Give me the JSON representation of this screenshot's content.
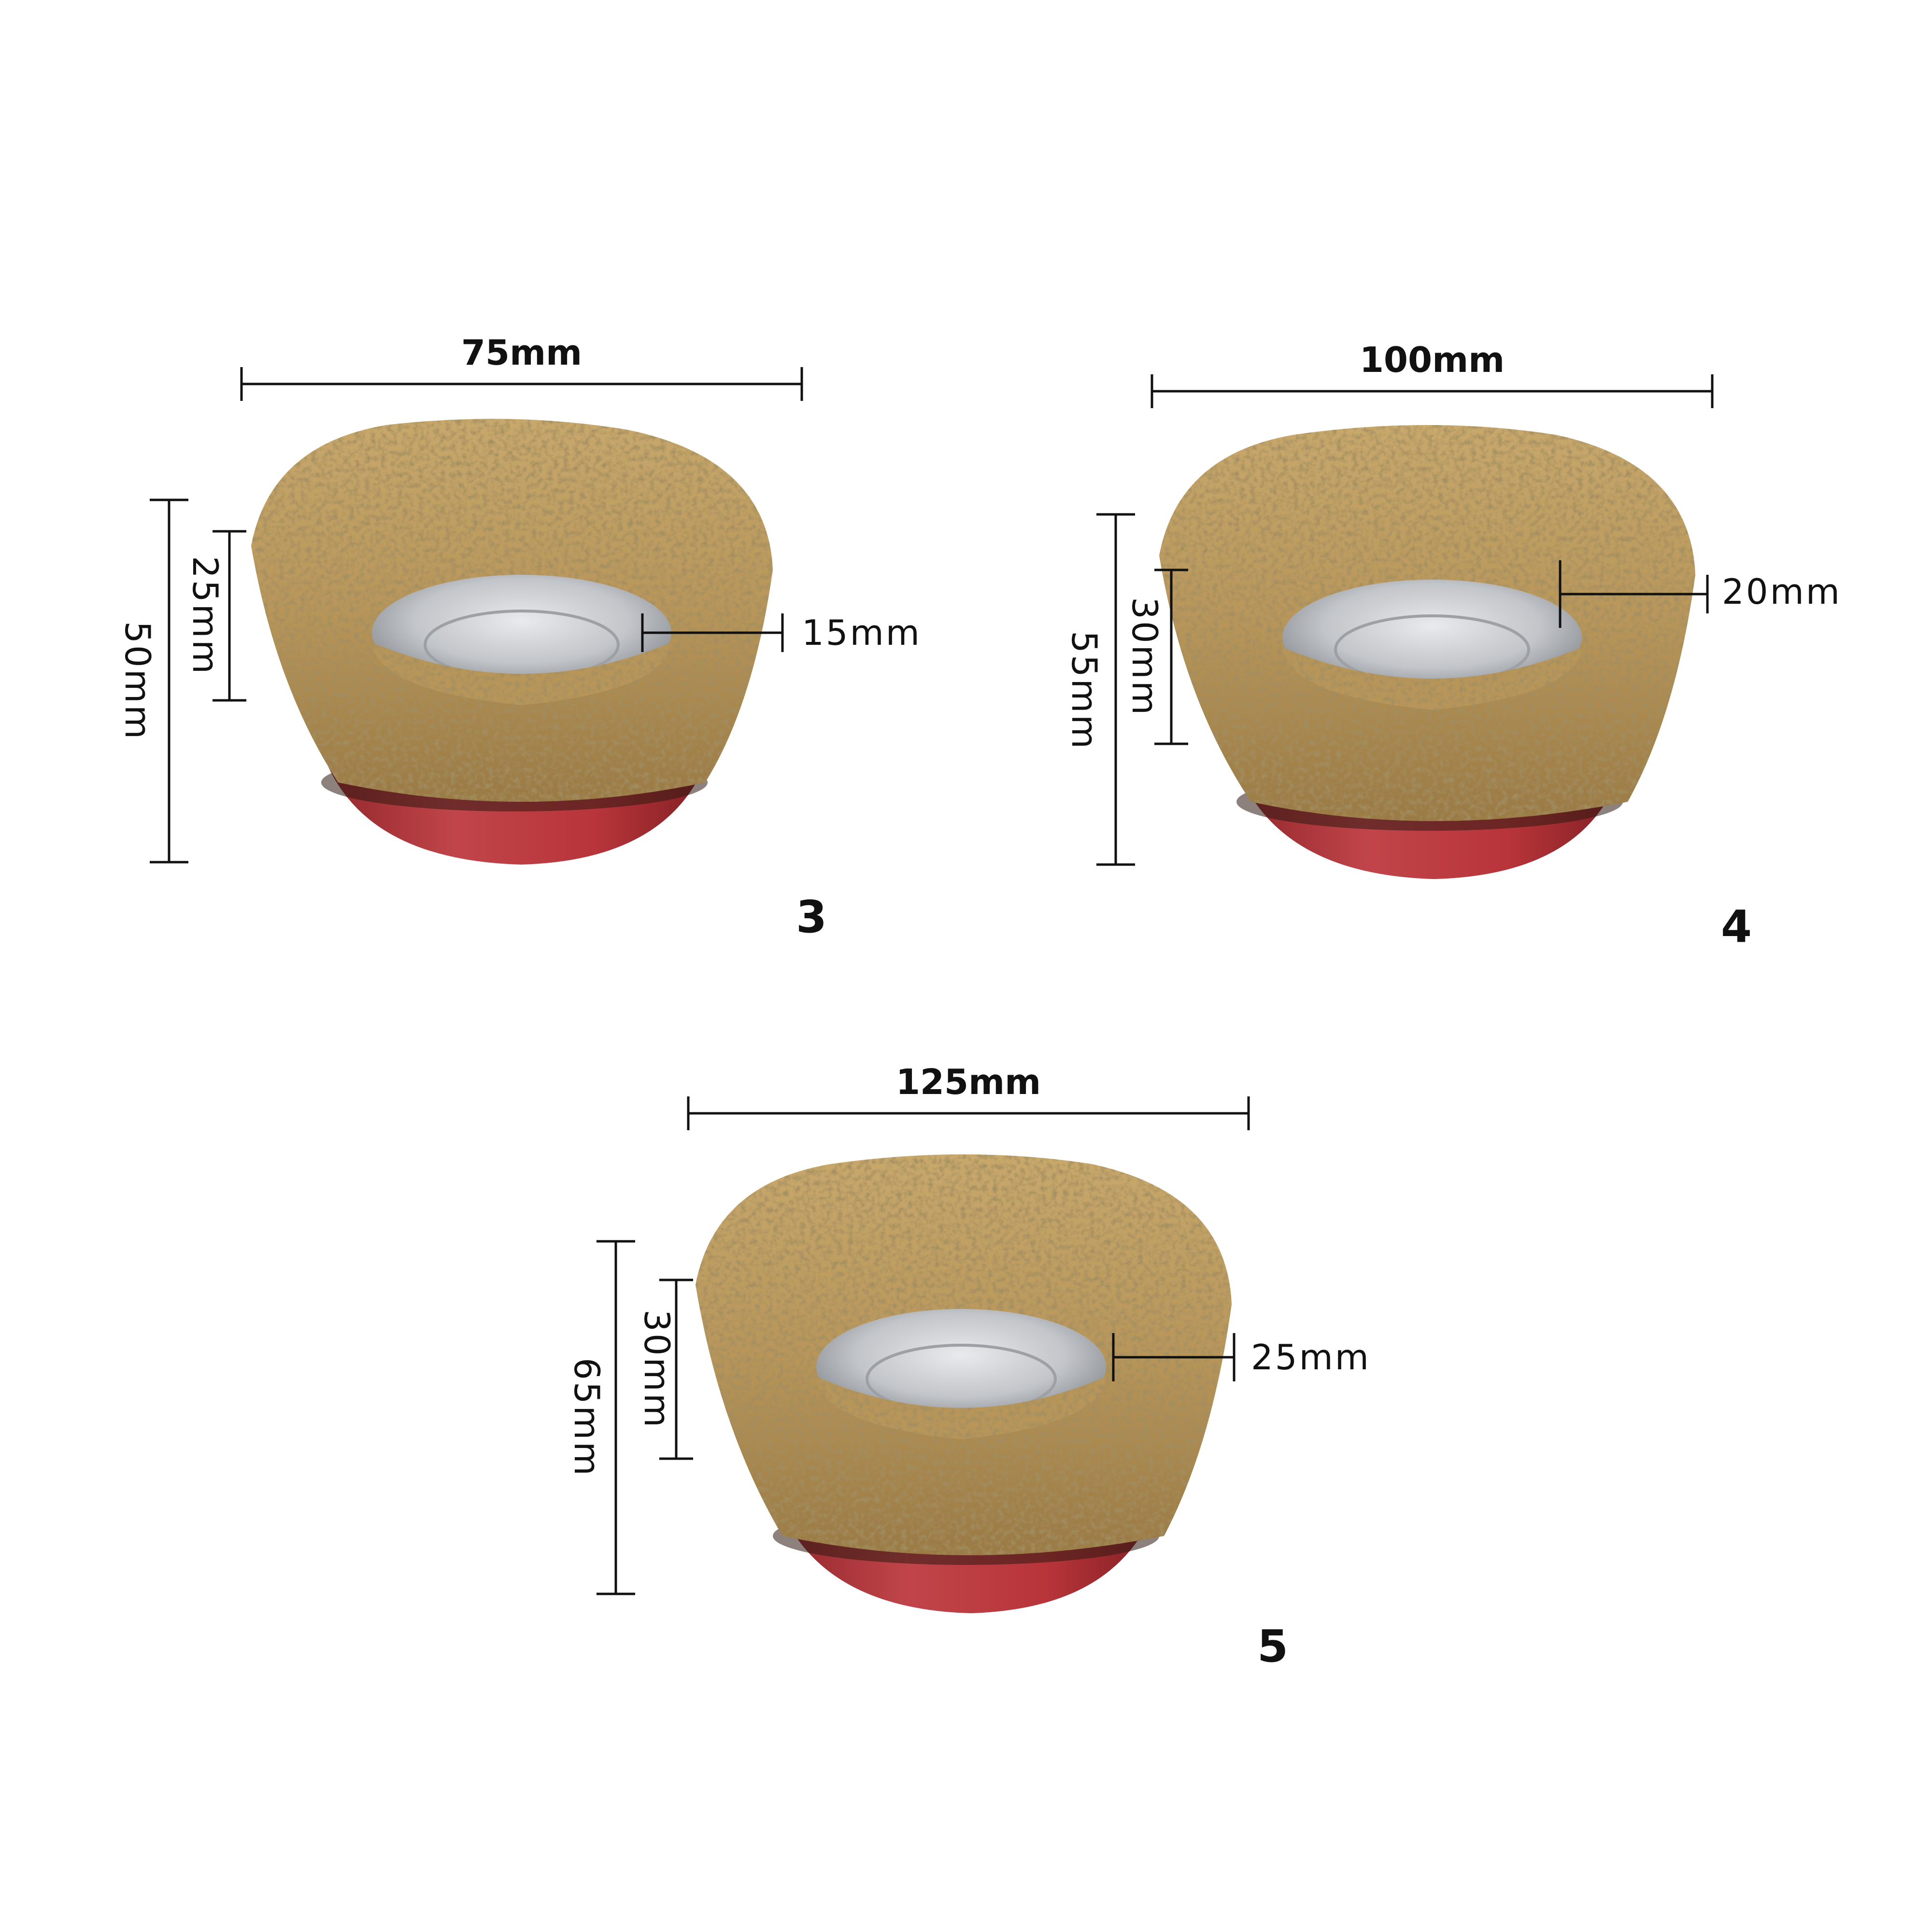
{
  "colors": {
    "background": "#ffffff",
    "wire": "#b8965a",
    "wire_dark": "#7a5c2e",
    "wire_light": "#d8bf8a",
    "cup": "#b8353a",
    "cup_dark": "#8e2428",
    "metal": "#c9ccd0",
    "metal_dark": "#8f9398",
    "dimension_line": "#111111"
  },
  "brushes": [
    {
      "number": "3",
      "width": "75mm",
      "height": "50mm",
      "wire_length": "25mm",
      "thread": "15mm"
    },
    {
      "number": "4",
      "width": "100mm",
      "height": "55mm",
      "wire_length": "30mm",
      "thread": "20mm"
    },
    {
      "number": "5",
      "width": "125mm",
      "height": "65mm",
      "wire_length": "30mm",
      "thread": "25mm"
    }
  ]
}
